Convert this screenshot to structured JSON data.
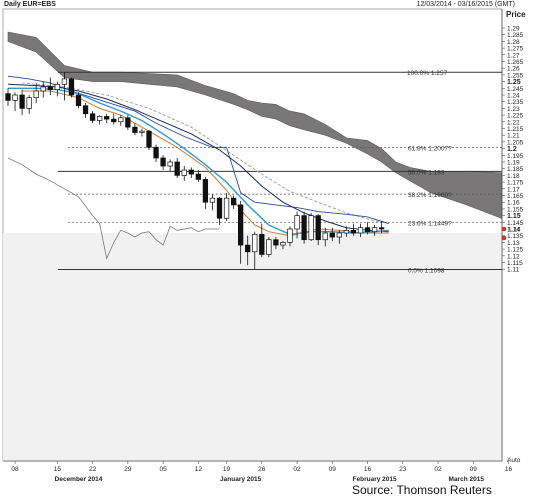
{
  "header": {
    "title": "Daily EUR=EBS",
    "date_range": "12/03/2014 - 03/16/2015 (GMT)"
  },
  "source": "Source: Thomson Reuters",
  "chart_data": {
    "type": "candlestick",
    "ylabel": "Price",
    "ylim": [
      1.105,
      1.295
    ],
    "y_ticks": [
      1.11,
      1.115,
      1.12,
      1.125,
      1.13,
      1.135,
      1.14,
      1.145,
      1.15,
      1.155,
      1.16,
      1.165,
      1.17,
      1.175,
      1.18,
      1.185,
      1.19,
      1.195,
      1.2,
      1.205,
      1.21,
      1.215,
      1.22,
      1.225,
      1.23,
      1.235,
      1.24,
      1.245,
      1.25,
      1.255,
      1.26,
      1.265,
      1.27,
      1.275,
      1.28,
      1.285,
      1.29
    ],
    "y_tick_labels": [
      "1.11",
      "1.115",
      "1.12",
      "1.125",
      "1.13",
      "1.135",
      "1.14",
      "1.145",
      "1.15",
      "1.155",
      "1.16",
      "1.165",
      "1.17",
      "1.175",
      "1.18",
      "1.185",
      "1.19",
      "1.195",
      "1.2",
      "1.205",
      "1.21",
      "1.215",
      "1.22",
      "1.225",
      "1.23",
      "1.235",
      "1.24",
      "1.245",
      "1.25",
      "1.255",
      "1.26",
      "1.265",
      "1.27",
      "1.275",
      "1.28",
      "1.285",
      "1.29"
    ],
    "y_bold_ticks": [
      1.15,
      1.2,
      1.25
    ],
    "last_price_label": "1.14",
    "axis_end_label": "Auto",
    "x_tick_labels": [
      {
        "label": "08",
        "x": 1
      },
      {
        "label": "15",
        "x": 7
      },
      {
        "label": "22",
        "x": 12
      },
      {
        "label": "29",
        "x": 17
      },
      {
        "label": "05",
        "x": 22
      },
      {
        "label": "12",
        "x": 27
      },
      {
        "label": "19",
        "x": 31
      },
      {
        "label": "26",
        "x": 36
      },
      {
        "label": "02",
        "x": 41
      },
      {
        "label": "09",
        "x": 46
      },
      {
        "label": "16",
        "x": 51
      },
      {
        "label": "23",
        "x": 56
      },
      {
        "label": "02",
        "x": 61
      },
      {
        "label": "09",
        "x": 66
      },
      {
        "label": "16",
        "x": 71
      }
    ],
    "month_labels": [
      {
        "label": "December 2014",
        "x": 10
      },
      {
        "label": "January 2015",
        "x": 33
      },
      {
        "label": "February 2015",
        "x": 52
      },
      {
        "label": "March 2015",
        "x": 65
      }
    ],
    "fibonacci_levels": [
      {
        "label": "100.0% 1.257",
        "value": 1.257
      },
      {
        "label": "61.8% 1.2007?",
        "value": 1.2007
      },
      {
        "label": "50.0% 1.183",
        "value": 1.183
      },
      {
        "label": "38.2% 1.1660?",
        "value": 1.166
      },
      {
        "label": "23.6% 1.1449?",
        "value": 1.1449
      },
      {
        "label": "0.0% 1.1098",
        "value": 1.1098
      }
    ],
    "candles": [
      {
        "x": 0,
        "o": 1.241,
        "h": 1.245,
        "l": 1.232,
        "c": 1.236
      },
      {
        "x": 1,
        "o": 1.236,
        "h": 1.242,
        "l": 1.228,
        "c": 1.24
      },
      {
        "x": 2,
        "o": 1.24,
        "h": 1.244,
        "l": 1.225,
        "c": 1.23
      },
      {
        "x": 3,
        "o": 1.23,
        "h": 1.24,
        "l": 1.226,
        "c": 1.238
      },
      {
        "x": 4,
        "o": 1.238,
        "h": 1.249,
        "l": 1.234,
        "c": 1.243
      },
      {
        "x": 5,
        "o": 1.243,
        "h": 1.25,
        "l": 1.238,
        "c": 1.246
      },
      {
        "x": 6,
        "o": 1.246,
        "h": 1.253,
        "l": 1.24,
        "c": 1.244
      },
      {
        "x": 7,
        "o": 1.244,
        "h": 1.25,
        "l": 1.239,
        "c": 1.248
      },
      {
        "x": 8,
        "o": 1.248,
        "h": 1.257,
        "l": 1.236,
        "c": 1.252
      },
      {
        "x": 9,
        "o": 1.252,
        "h": 1.253,
        "l": 1.238,
        "c": 1.24
      },
      {
        "x": 10,
        "o": 1.24,
        "h": 1.242,
        "l": 1.23,
        "c": 1.232
      },
      {
        "x": 11,
        "o": 1.232,
        "h": 1.234,
        "l": 1.223,
        "c": 1.226
      },
      {
        "x": 12,
        "o": 1.226,
        "h": 1.228,
        "l": 1.219,
        "c": 1.221
      },
      {
        "x": 13,
        "o": 1.221,
        "h": 1.225,
        "l": 1.218,
        "c": 1.224
      },
      {
        "x": 14,
        "o": 1.224,
        "h": 1.226,
        "l": 1.219,
        "c": 1.222
      },
      {
        "x": 15,
        "o": 1.222,
        "h": 1.226,
        "l": 1.218,
        "c": 1.22
      },
      {
        "x": 16,
        "o": 1.22,
        "h": 1.225,
        "l": 1.217,
        "c": 1.223
      },
      {
        "x": 17,
        "o": 1.223,
        "h": 1.225,
        "l": 1.214,
        "c": 1.216
      },
      {
        "x": 18,
        "o": 1.216,
        "h": 1.219,
        "l": 1.21,
        "c": 1.212
      },
      {
        "x": 19,
        "o": 1.212,
        "h": 1.215,
        "l": 1.209,
        "c": 1.213
      },
      {
        "x": 20,
        "o": 1.213,
        "h": 1.214,
        "l": 1.199,
        "c": 1.201
      },
      {
        "x": 21,
        "o": 1.201,
        "h": 1.203,
        "l": 1.19,
        "c": 1.193
      },
      {
        "x": 22,
        "o": 1.193,
        "h": 1.195,
        "l": 1.184,
        "c": 1.187
      },
      {
        "x": 23,
        "o": 1.187,
        "h": 1.192,
        "l": 1.183,
        "c": 1.19
      },
      {
        "x": 24,
        "o": 1.19,
        "h": 1.193,
        "l": 1.178,
        "c": 1.18
      },
      {
        "x": 25,
        "o": 1.18,
        "h": 1.187,
        "l": 1.176,
        "c": 1.184
      },
      {
        "x": 26,
        "o": 1.184,
        "h": 1.186,
        "l": 1.178,
        "c": 1.181
      },
      {
        "x": 27,
        "o": 1.181,
        "h": 1.184,
        "l": 1.175,
        "c": 1.177
      },
      {
        "x": 28,
        "o": 1.177,
        "h": 1.179,
        "l": 1.155,
        "c": 1.16
      },
      {
        "x": 29,
        "o": 1.16,
        "h": 1.166,
        "l": 1.154,
        "c": 1.163
      },
      {
        "x": 30,
        "o": 1.163,
        "h": 1.164,
        "l": 1.143,
        "c": 1.148
      },
      {
        "x": 31,
        "o": 1.148,
        "h": 1.167,
        "l": 1.146,
        "c": 1.163
      },
      {
        "x": 32,
        "o": 1.163,
        "h": 1.165,
        "l": 1.155,
        "c": 1.158
      },
      {
        "x": 33,
        "o": 1.158,
        "h": 1.161,
        "l": 1.114,
        "c": 1.128
      },
      {
        "x": 34,
        "o": 1.128,
        "h": 1.135,
        "l": 1.113,
        "c": 1.123
      },
      {
        "x": 35,
        "o": 1.123,
        "h": 1.138,
        "l": 1.11,
        "c": 1.136
      },
      {
        "x": 36,
        "o": 1.136,
        "h": 1.144,
        "l": 1.119,
        "c": 1.121
      },
      {
        "x": 37,
        "o": 1.121,
        "h": 1.134,
        "l": 1.119,
        "c": 1.132
      },
      {
        "x": 38,
        "o": 1.132,
        "h": 1.134,
        "l": 1.125,
        "c": 1.128
      },
      {
        "x": 39,
        "o": 1.128,
        "h": 1.131,
        "l": 1.125,
        "c": 1.13
      },
      {
        "x": 40,
        "o": 1.13,
        "h": 1.142,
        "l": 1.127,
        "c": 1.14
      },
      {
        "x": 41,
        "o": 1.14,
        "h": 1.153,
        "l": 1.133,
        "c": 1.15
      },
      {
        "x": 42,
        "o": 1.15,
        "h": 1.153,
        "l": 1.129,
        "c": 1.132
      },
      {
        "x": 43,
        "o": 1.132,
        "h": 1.152,
        "l": 1.131,
        "c": 1.15
      },
      {
        "x": 44,
        "o": 1.15,
        "h": 1.151,
        "l": 1.128,
        "c": 1.132
      },
      {
        "x": 45,
        "o": 1.132,
        "h": 1.141,
        "l": 1.127,
        "c": 1.137
      },
      {
        "x": 46,
        "o": 1.137,
        "h": 1.141,
        "l": 1.131,
        "c": 1.134
      },
      {
        "x": 47,
        "o": 1.134,
        "h": 1.139,
        "l": 1.129,
        "c": 1.137
      },
      {
        "x": 48,
        "o": 1.137,
        "h": 1.142,
        "l": 1.134,
        "c": 1.139
      },
      {
        "x": 49,
        "o": 1.139,
        "h": 1.144,
        "l": 1.135,
        "c": 1.137
      },
      {
        "x": 50,
        "o": 1.137,
        "h": 1.144,
        "l": 1.134,
        "c": 1.141
      },
      {
        "x": 51,
        "o": 1.141,
        "h": 1.145,
        "l": 1.136,
        "c": 1.138
      },
      {
        "x": 52,
        "o": 1.138,
        "h": 1.143,
        "l": 1.135,
        "c": 1.141
      },
      {
        "x": 53,
        "o": 1.141,
        "h": 1.146,
        "l": 1.137,
        "c": 1.14
      }
    ],
    "cloud_upper": [
      [
        0,
        1.287
      ],
      [
        4,
        1.283
      ],
      [
        8,
        1.262
      ],
      [
        12,
        1.257
      ],
      [
        16,
        1.257
      ],
      [
        20,
        1.256
      ],
      [
        24,
        1.255
      ],
      [
        28,
        1.247
      ],
      [
        32,
        1.241
      ],
      [
        34,
        1.236
      ],
      [
        36,
        1.234
      ],
      [
        38,
        1.233
      ],
      [
        40,
        1.228
      ],
      [
        42,
        1.226
      ],
      [
        45,
        1.218
      ],
      [
        48,
        1.208
      ],
      [
        51,
        1.206
      ],
      [
        53,
        1.2
      ],
      [
        55,
        1.19
      ],
      [
        57,
        1.186
      ],
      [
        60,
        1.183
      ],
      [
        65,
        1.183
      ],
      [
        70,
        1.182
      ]
    ],
    "cloud_lower": [
      [
        0,
        1.28
      ],
      [
        4,
        1.272
      ],
      [
        8,
        1.253
      ],
      [
        12,
        1.25
      ],
      [
        16,
        1.25
      ],
      [
        20,
        1.248
      ],
      [
        24,
        1.246
      ],
      [
        28,
        1.24
      ],
      [
        32,
        1.233
      ],
      [
        34,
        1.229
      ],
      [
        36,
        1.224
      ],
      [
        38,
        1.222
      ],
      [
        40,
        1.217
      ],
      [
        42,
        1.214
      ],
      [
        45,
        1.21
      ],
      [
        48,
        1.204
      ],
      [
        51,
        1.196
      ],
      [
        53,
        1.19
      ],
      [
        55,
        1.182
      ],
      [
        57,
        1.176
      ],
      [
        60,
        1.167
      ],
      [
        65,
        1.158
      ],
      [
        70,
        1.148
      ]
    ],
    "ma_fast": [
      [
        0,
        1.245
      ],
      [
        4,
        1.245
      ],
      [
        7,
        1.244
      ],
      [
        10,
        1.241
      ],
      [
        13,
        1.234
      ],
      [
        16,
        1.228
      ],
      [
        19,
        1.221
      ],
      [
        22,
        1.211
      ],
      [
        25,
        1.2
      ],
      [
        28,
        1.188
      ],
      [
        31,
        1.175
      ],
      [
        34,
        1.158
      ],
      [
        37,
        1.143
      ],
      [
        40,
        1.136
      ],
      [
        43,
        1.138
      ],
      [
        46,
        1.138
      ],
      [
        49,
        1.137
      ],
      [
        52,
        1.138
      ],
      [
        54,
        1.139
      ]
    ],
    "ma_slow": [
      [
        0,
        1.248
      ],
      [
        4,
        1.247
      ],
      [
        7,
        1.246
      ],
      [
        10,
        1.243
      ],
      [
        14,
        1.237
      ],
      [
        18,
        1.229
      ],
      [
        22,
        1.22
      ],
      [
        26,
        1.211
      ],
      [
        30,
        1.199
      ],
      [
        33,
        1.187
      ],
      [
        36,
        1.172
      ],
      [
        39,
        1.16
      ],
      [
        42,
        1.152
      ],
      [
        45,
        1.146
      ],
      [
        48,
        1.141
      ],
      [
        51,
        1.139
      ],
      [
        54,
        1.138
      ]
    ],
    "ma_orange": [
      [
        2,
        1.243
      ],
      [
        6,
        1.243
      ],
      [
        10,
        1.238
      ],
      [
        13,
        1.23
      ],
      [
        16,
        1.225
      ],
      [
        20,
        1.213
      ],
      [
        24,
        1.201
      ],
      [
        28,
        1.186
      ],
      [
        31,
        1.169
      ],
      [
        33,
        1.154
      ],
      [
        35,
        1.143
      ],
      [
        37,
        1.138
      ],
      [
        40,
        1.135
      ],
      [
        44,
        1.14
      ],
      [
        47,
        1.139
      ],
      [
        50,
        1.137
      ],
      [
        54,
        1.137
      ]
    ],
    "ma_dashed": [
      [
        2,
        1.249
      ],
      [
        8,
        1.246
      ],
      [
        14,
        1.24
      ],
      [
        20,
        1.23
      ],
      [
        26,
        1.216
      ],
      [
        32,
        1.195
      ],
      [
        36,
        1.181
      ],
      [
        40,
        1.168
      ],
      [
        44,
        1.16
      ],
      [
        48,
        1.152
      ],
      [
        52,
        1.146
      ],
      [
        54,
        1.144
      ]
    ],
    "blue_band": [
      [
        0,
        1.254
      ],
      [
        3,
        1.252
      ],
      [
        6,
        1.249
      ],
      [
        9,
        1.243
      ],
      [
        12,
        1.238
      ],
      [
        15,
        1.233
      ],
      [
        18,
        1.228
      ],
      [
        21,
        1.219
      ],
      [
        25,
        1.209
      ],
      [
        29,
        1.201
      ],
      [
        31,
        1.201
      ],
      [
        33,
        1.167
      ],
      [
        35,
        1.16
      ],
      [
        38,
        1.158
      ],
      [
        41,
        1.156
      ],
      [
        44,
        1.153
      ],
      [
        48,
        1.151
      ],
      [
        51,
        1.149
      ],
      [
        54,
        1.144
      ]
    ],
    "lagging_span": [
      [
        0,
        1.193
      ],
      [
        2,
        1.188
      ],
      [
        4,
        1.181
      ],
      [
        6,
        1.176
      ],
      [
        8,
        1.17
      ],
      [
        10,
        1.164
      ],
      [
        12,
        1.15
      ],
      [
        13,
        1.144
      ],
      [
        14,
        1.118
      ],
      [
        15,
        1.13
      ],
      [
        16,
        1.139
      ],
      [
        17,
        1.137
      ],
      [
        18,
        1.134
      ],
      [
        19,
        1.137
      ],
      [
        20,
        1.138
      ],
      [
        21,
        1.132
      ],
      [
        22,
        1.128
      ],
      [
        23,
        1.142
      ],
      [
        24,
        1.139
      ],
      [
        26,
        1.141
      ],
      [
        27,
        1.138
      ],
      [
        28,
        1.14
      ],
      [
        30,
        1.14
      ]
    ]
  }
}
